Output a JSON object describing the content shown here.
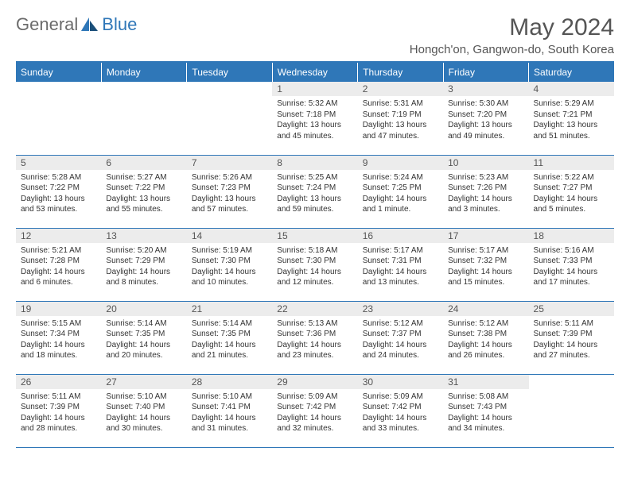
{
  "logo": {
    "text1": "General",
    "text2": "Blue"
  },
  "title": "May 2024",
  "location": "Hongch'on, Gangwon-do, South Korea",
  "headers": [
    "Sunday",
    "Monday",
    "Tuesday",
    "Wednesday",
    "Thursday",
    "Friday",
    "Saturday"
  ],
  "colors": {
    "header_bg": "#2f77b8",
    "header_text": "#ffffff",
    "daynum_bg": "#ececec",
    "border": "#2f77b8",
    "text": "#333333",
    "title_text": "#555555"
  },
  "grid": [
    [
      null,
      null,
      null,
      {
        "n": "1",
        "sr": "5:32 AM",
        "ss": "7:18 PM",
        "dl": "13 hours and 45 minutes."
      },
      {
        "n": "2",
        "sr": "5:31 AM",
        "ss": "7:19 PM",
        "dl": "13 hours and 47 minutes."
      },
      {
        "n": "3",
        "sr": "5:30 AM",
        "ss": "7:20 PM",
        "dl": "13 hours and 49 minutes."
      },
      {
        "n": "4",
        "sr": "5:29 AM",
        "ss": "7:21 PM",
        "dl": "13 hours and 51 minutes."
      }
    ],
    [
      {
        "n": "5",
        "sr": "5:28 AM",
        "ss": "7:22 PM",
        "dl": "13 hours and 53 minutes."
      },
      {
        "n": "6",
        "sr": "5:27 AM",
        "ss": "7:22 PM",
        "dl": "13 hours and 55 minutes."
      },
      {
        "n": "7",
        "sr": "5:26 AM",
        "ss": "7:23 PM",
        "dl": "13 hours and 57 minutes."
      },
      {
        "n": "8",
        "sr": "5:25 AM",
        "ss": "7:24 PM",
        "dl": "13 hours and 59 minutes."
      },
      {
        "n": "9",
        "sr": "5:24 AM",
        "ss": "7:25 PM",
        "dl": "14 hours and 1 minute."
      },
      {
        "n": "10",
        "sr": "5:23 AM",
        "ss": "7:26 PM",
        "dl": "14 hours and 3 minutes."
      },
      {
        "n": "11",
        "sr": "5:22 AM",
        "ss": "7:27 PM",
        "dl": "14 hours and 5 minutes."
      }
    ],
    [
      {
        "n": "12",
        "sr": "5:21 AM",
        "ss": "7:28 PM",
        "dl": "14 hours and 6 minutes."
      },
      {
        "n": "13",
        "sr": "5:20 AM",
        "ss": "7:29 PM",
        "dl": "14 hours and 8 minutes."
      },
      {
        "n": "14",
        "sr": "5:19 AM",
        "ss": "7:30 PM",
        "dl": "14 hours and 10 minutes."
      },
      {
        "n": "15",
        "sr": "5:18 AM",
        "ss": "7:30 PM",
        "dl": "14 hours and 12 minutes."
      },
      {
        "n": "16",
        "sr": "5:17 AM",
        "ss": "7:31 PM",
        "dl": "14 hours and 13 minutes."
      },
      {
        "n": "17",
        "sr": "5:17 AM",
        "ss": "7:32 PM",
        "dl": "14 hours and 15 minutes."
      },
      {
        "n": "18",
        "sr": "5:16 AM",
        "ss": "7:33 PM",
        "dl": "14 hours and 17 minutes."
      }
    ],
    [
      {
        "n": "19",
        "sr": "5:15 AM",
        "ss": "7:34 PM",
        "dl": "14 hours and 18 minutes."
      },
      {
        "n": "20",
        "sr": "5:14 AM",
        "ss": "7:35 PM",
        "dl": "14 hours and 20 minutes."
      },
      {
        "n": "21",
        "sr": "5:14 AM",
        "ss": "7:35 PM",
        "dl": "14 hours and 21 minutes."
      },
      {
        "n": "22",
        "sr": "5:13 AM",
        "ss": "7:36 PM",
        "dl": "14 hours and 23 minutes."
      },
      {
        "n": "23",
        "sr": "5:12 AM",
        "ss": "7:37 PM",
        "dl": "14 hours and 24 minutes."
      },
      {
        "n": "24",
        "sr": "5:12 AM",
        "ss": "7:38 PM",
        "dl": "14 hours and 26 minutes."
      },
      {
        "n": "25",
        "sr": "5:11 AM",
        "ss": "7:39 PM",
        "dl": "14 hours and 27 minutes."
      }
    ],
    [
      {
        "n": "26",
        "sr": "5:11 AM",
        "ss": "7:39 PM",
        "dl": "14 hours and 28 minutes."
      },
      {
        "n": "27",
        "sr": "5:10 AM",
        "ss": "7:40 PM",
        "dl": "14 hours and 30 minutes."
      },
      {
        "n": "28",
        "sr": "5:10 AM",
        "ss": "7:41 PM",
        "dl": "14 hours and 31 minutes."
      },
      {
        "n": "29",
        "sr": "5:09 AM",
        "ss": "7:42 PM",
        "dl": "14 hours and 32 minutes."
      },
      {
        "n": "30",
        "sr": "5:09 AM",
        "ss": "7:42 PM",
        "dl": "14 hours and 33 minutes."
      },
      {
        "n": "31",
        "sr": "5:08 AM",
        "ss": "7:43 PM",
        "dl": "14 hours and 34 minutes."
      },
      null
    ]
  ],
  "labels": {
    "sunrise": "Sunrise:",
    "sunset": "Sunset:",
    "daylight": "Daylight:"
  }
}
